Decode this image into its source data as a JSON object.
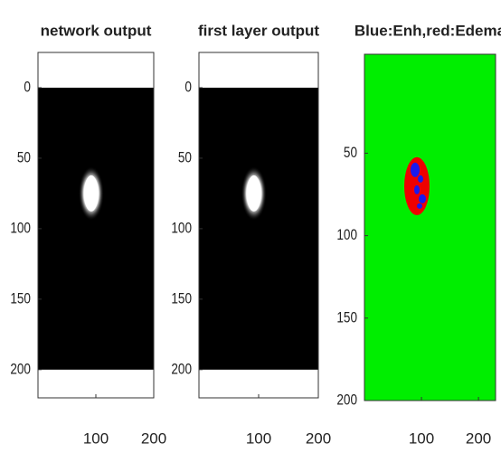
{
  "chart_data": [
    {
      "type": "image",
      "title": "network output",
      "xlim": [
        0,
        200
      ],
      "ylim": [
        -25,
        220
      ],
      "xticks": [
        100,
        200
      ],
      "yticks": [
        0,
        50,
        100,
        150,
        200
      ]
    },
    {
      "type": "image",
      "title": "first layer output",
      "xlim": [
        0,
        200
      ],
      "ylim": [
        -25,
        220
      ],
      "xticks": [
        100,
        200
      ],
      "yticks": [
        0,
        50,
        100,
        150,
        200
      ]
    },
    {
      "type": "image",
      "title": "Blue:Enh,red:Edema",
      "xlim": [
        0,
        230
      ],
      "ylim": [
        -10,
        200
      ],
      "xticks": [
        100,
        200
      ],
      "yticks": [
        50,
        100,
        150,
        200
      ]
    }
  ]
}
